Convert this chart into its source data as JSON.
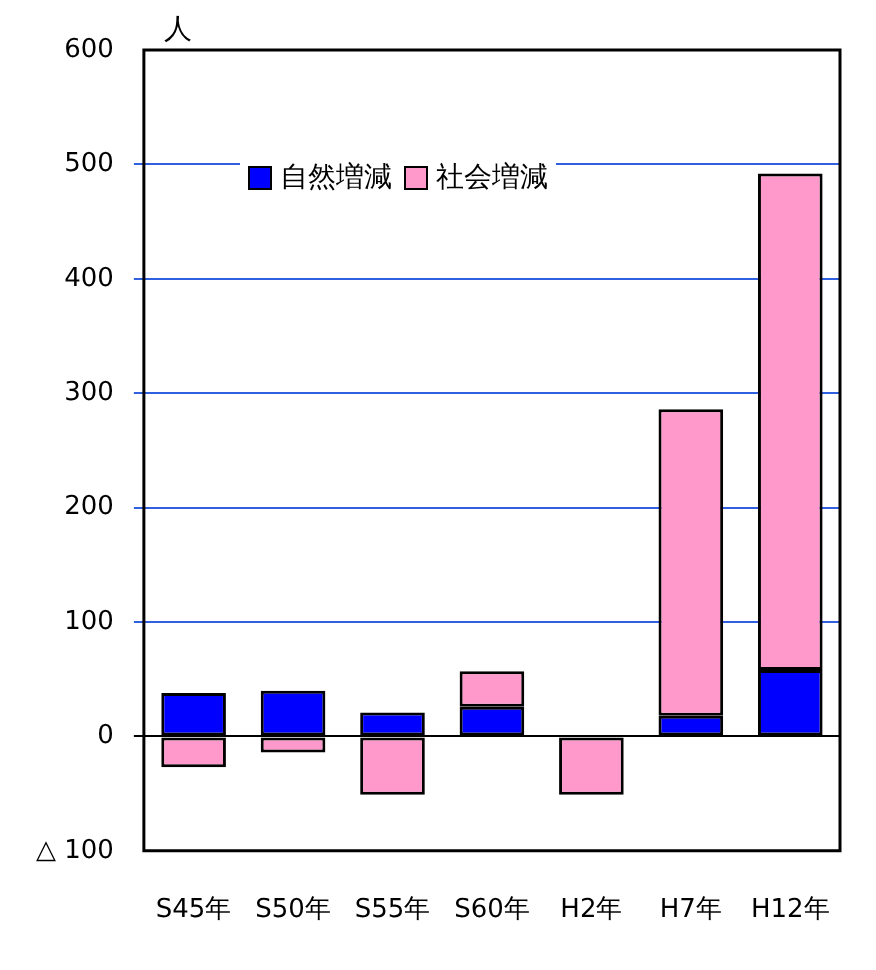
{
  "chart_data": {
    "type": "bar",
    "stacked": true,
    "ylabel": "人",
    "categories": [
      "S45年",
      "S50年",
      "S55年",
      "S60年",
      "H2年",
      "H7年",
      "H12年"
    ],
    "series": [
      {
        "name": "自然増減",
        "color": "#0000ff",
        "values": [
          38,
          40,
          21,
          26,
          0,
          18,
          58
        ]
      },
      {
        "name": "社会増減",
        "color": "#ff99cc",
        "values": [
          -27,
          -14,
          -51,
          31,
          -51,
          268,
          434
        ]
      }
    ],
    "ylim": [
      -100,
      600
    ],
    "yticks": [
      {
        "value": -100,
        "label": "△ 100"
      },
      0,
      100,
      200,
      300,
      400,
      500,
      600
    ],
    "grid": "y",
    "legend": "top"
  }
}
